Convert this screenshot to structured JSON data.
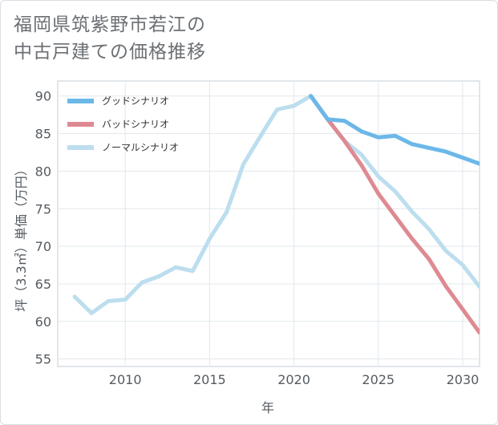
{
  "title_lines": [
    "福岡県筑紫野市若江の",
    "中古戸建ての価格推移"
  ],
  "chart_data": {
    "type": "line",
    "title": "福岡県筑紫野市若江の中古戸建ての価格推移",
    "xlabel": "年",
    "ylabel": "坪（3.3㎡）単価（万円）",
    "xlim": [
      2006,
      2031
    ],
    "ylim": [
      54,
      92
    ],
    "xticks": [
      2010,
      2015,
      2020,
      2025,
      2030
    ],
    "yticks": [
      55,
      60,
      65,
      70,
      75,
      80,
      85,
      90
    ],
    "legend_position": "top-left",
    "series": [
      {
        "name": "グッドシナリオ",
        "color": "#6bb8e8",
        "x": [
          2021,
          2022,
          2023,
          2024,
          2025,
          2026,
          2027,
          2028,
          2029,
          2030,
          2031
        ],
        "values": [
          90.0,
          86.9,
          86.7,
          85.3,
          84.5,
          84.7,
          83.6,
          83.1,
          82.6,
          81.8,
          81.0
        ]
      },
      {
        "name": "バッドシナリオ",
        "color": "#de8a92",
        "x": [
          2021,
          2022,
          2023,
          2024,
          2025,
          2026,
          2027,
          2028,
          2029,
          2030,
          2031
        ],
        "values": [
          90.0,
          86.9,
          84.0,
          80.8,
          77.0,
          74.0,
          71.0,
          68.3,
          64.7,
          61.6,
          58.5
        ]
      },
      {
        "name": "ノーマルシナリオ",
        "color": "#bcdeee",
        "x": [
          2007,
          2008,
          2009,
          2010,
          2011,
          2012,
          2013,
          2014,
          2015,
          2016,
          2017,
          2018,
          2019,
          2020,
          2021,
          2022,
          2023,
          2024,
          2025,
          2026,
          2027,
          2028,
          2029,
          2030,
          2031
        ],
        "values": [
          63.3,
          61.1,
          62.7,
          62.9,
          65.2,
          66.0,
          67.2,
          66.7,
          71.0,
          74.5,
          80.9,
          84.6,
          88.2,
          88.7,
          90.0,
          86.9,
          84.0,
          82.2,
          79.3,
          77.3,
          74.6,
          72.3,
          69.4,
          67.5,
          64.6
        ]
      }
    ]
  }
}
